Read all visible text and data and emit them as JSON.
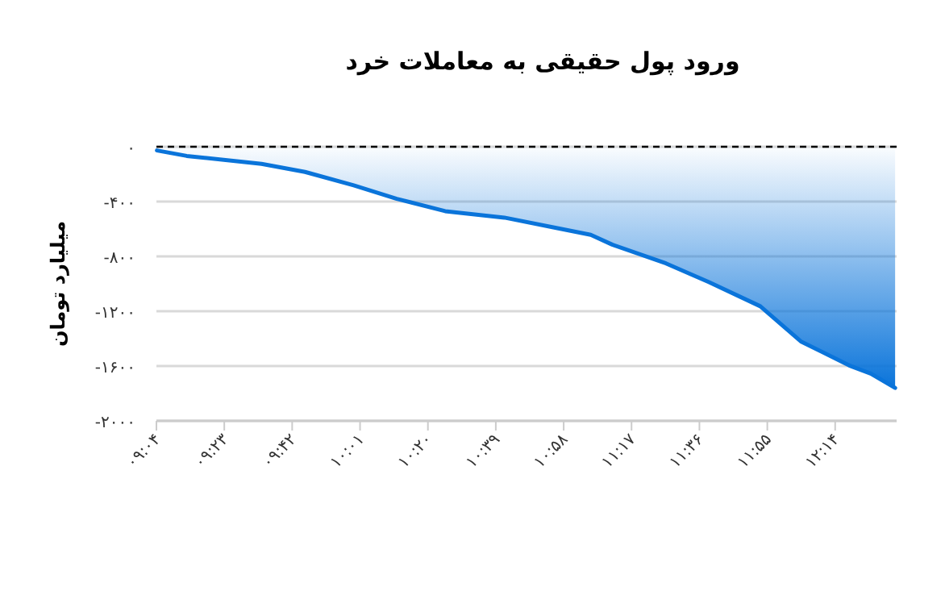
{
  "chart_data": {
    "type": "area",
    "title": "ورود پول حقیقی به معاملات خرد",
    "ylabel": "میلیارد تومان",
    "x": [
      9.069,
      9.208,
      9.557,
      9.76,
      9.987,
      10.188,
      10.414,
      10.69,
      10.942,
      11.093,
      11.193,
      11.444,
      11.645,
      11.884,
      12.073,
      12.299,
      12.399,
      12.513
    ],
    "series": [
      {
        "color": "#0a74da",
        "values": [
          -27,
          -67,
          -125,
          -184,
          -282,
          -380,
          -470,
          -517,
          -596,
          -643,
          -714,
          -851,
          -988,
          -1164,
          -1420,
          -1596,
          -1655,
          -1760
        ]
      }
    ],
    "xlim": [
      9.0667,
      12.52
    ],
    "xticks": [
      {
        "value": 9.0667,
        "label": "۰۹:۰۴"
      },
      {
        "value": 9.3833,
        "label": "۰۹:۲۳"
      },
      {
        "value": 9.7,
        "label": "۰۹:۴۲"
      },
      {
        "value": 10.0167,
        "label": "۱۰:۰۱"
      },
      {
        "value": 10.3333,
        "label": "۱۰:۲۰"
      },
      {
        "value": 10.65,
        "label": "۱۰:۳۹"
      },
      {
        "value": 10.9667,
        "label": "۱۰:۵۸"
      },
      {
        "value": 11.2833,
        "label": "۱۱:۱۷"
      },
      {
        "value": 11.6,
        "label": "۱۱:۳۶"
      },
      {
        "value": 11.9167,
        "label": "۱۱:۵۵"
      },
      {
        "value": 12.2333,
        "label": "۱۲:۱۴"
      }
    ],
    "ylim": [
      -2000,
      0
    ],
    "yticks": [
      {
        "value": 0,
        "label": "۰"
      },
      {
        "value": -400,
        "label": "-۴۰۰"
      },
      {
        "value": -800,
        "label": "-۸۰۰"
      },
      {
        "value": -1200,
        "label": "-۱۲۰۰"
      },
      {
        "value": -1600,
        "label": "-۱۶۰۰"
      },
      {
        "value": -2000,
        "label": "-۲۰۰۰"
      }
    ],
    "grid": "y",
    "ref_lines": [
      {
        "axis": "y",
        "value": 0,
        "color": "#000000",
        "line_style": "dashed"
      }
    ]
  }
}
